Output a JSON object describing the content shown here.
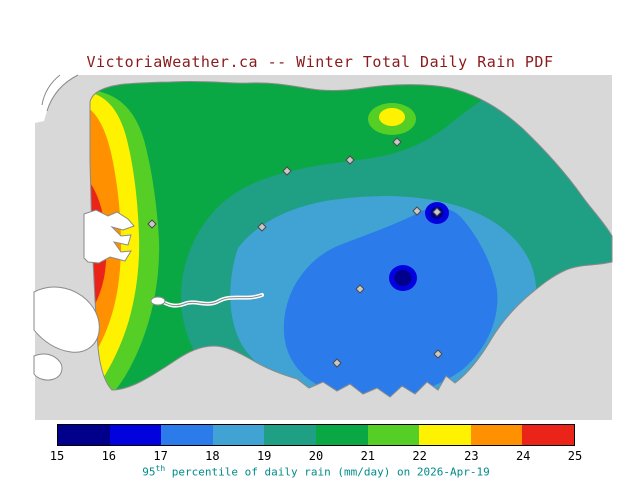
{
  "title": "VictoriaWeather.ca -- Winter Total Daily Rain PDF",
  "caption": {
    "number": "95",
    "suffix": "th",
    "text": " percentile of daily rain (mm/day) on 2026-Apr-19"
  },
  "colorbar": {
    "tick_labels": [
      "15",
      "16",
      "17",
      "18",
      "19",
      "20",
      "21",
      "22",
      "23",
      "24",
      "25"
    ],
    "segment_colors": [
      "#00008B",
      "#0202DE",
      "#2B7BEA",
      "#41A3D4",
      "#1FA084",
      "#0AA845",
      "#55CE26",
      "#FFF200",
      "#FF9000",
      "#EA2418"
    ],
    "units": "mm/day"
  },
  "colors": {
    "title_color": "#8B1A1A",
    "caption_color": "#008B8B",
    "map_bg": "#D8D8D8",
    "land": "#FFFFFF",
    "coastline": "#8A8A8A"
  },
  "map": {
    "stations": [
      [
        152,
        224
      ],
      [
        262,
        227
      ],
      [
        287,
        171
      ],
      [
        350,
        160
      ],
      [
        397,
        142
      ],
      [
        417,
        211
      ],
      [
        437,
        212
      ],
      [
        360,
        289
      ],
      [
        337,
        363
      ],
      [
        438,
        354
      ]
    ]
  },
  "chart_data": {
    "type": "contour-map",
    "title": "VictoriaWeather.ca -- Winter Total Daily Rain PDF",
    "colorbar_label": "95th percentile of daily rain (mm/day) on 2026-Apr-19",
    "scale": {
      "min": 15,
      "max": 25,
      "units": "mm/day",
      "ticks": [
        15,
        16,
        17,
        18,
        19,
        20,
        21,
        22,
        23,
        24,
        25
      ]
    },
    "date": "2026-Apr-19"
  }
}
